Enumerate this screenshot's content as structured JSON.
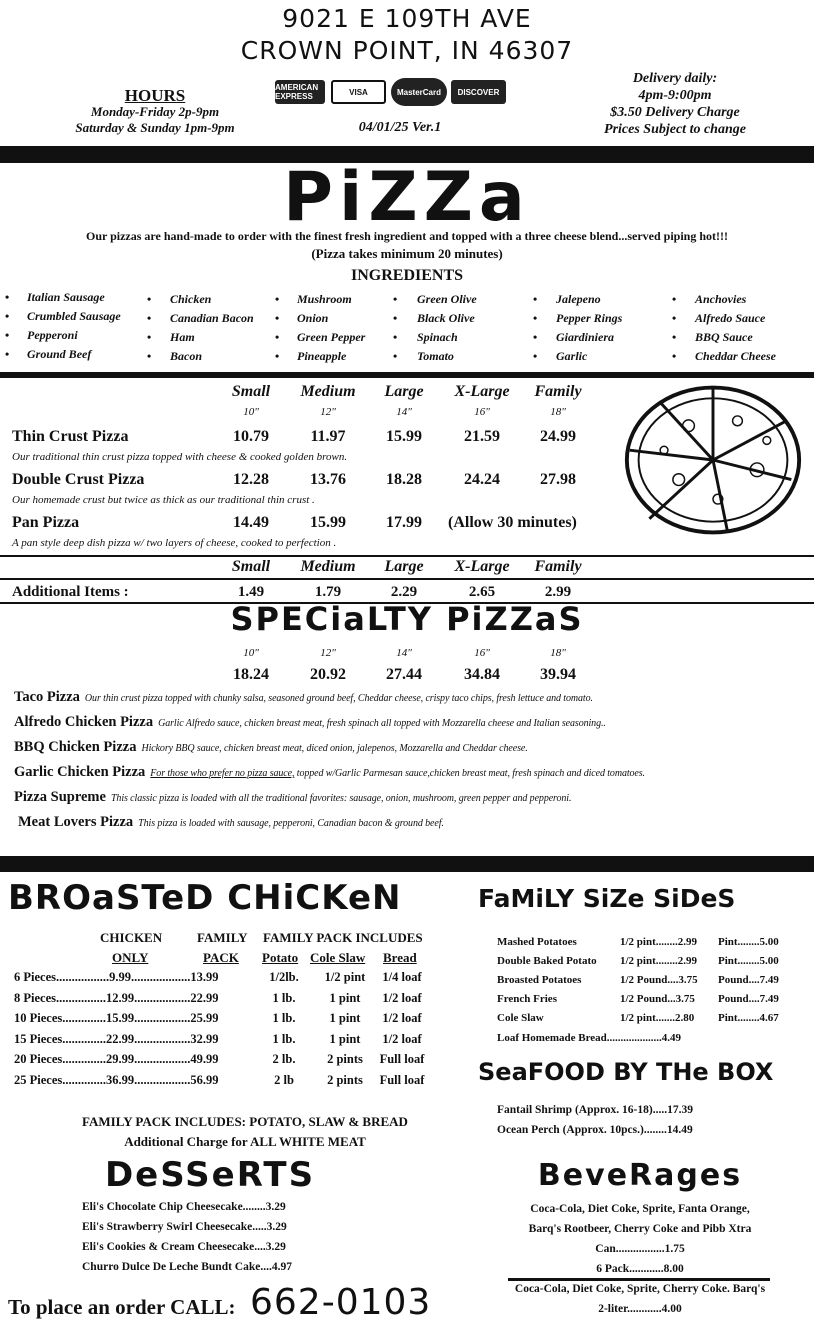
{
  "header": {
    "address1": "9021 E 109TH AVE",
    "address2": "CROWN POINT, IN 46307",
    "hours_title": "HOURS",
    "hours1": "Monday-Friday 2p-9pm",
    "hours2": "Saturday & Sunday 1pm-9pm",
    "cards": [
      "AMERICAN EXPRESS",
      "VISA",
      "MasterCard",
      "DISCOVER"
    ],
    "version": "04/01/25  Ver.1",
    "delivery1": "Delivery daily:",
    "delivery2": "4pm-9:00pm",
    "delivery3": "$3.50 Delivery Charge",
    "delivery4": "Prices Subject to change"
  },
  "pizza": {
    "title": "PiZZa",
    "tagline": "Our pizzas are hand-made to order with the finest fresh ingredient and topped with a three cheese blend...served piping hot!!!",
    "note": "(Pizza takes minimum 20 minutes)",
    "ingredients_title": "INGREDIENTS",
    "ingredients": [
      [
        "Italian Sausage",
        "Crumbled Sausage",
        "Pepperoni",
        "Ground Beef"
      ],
      [
        "Chicken",
        "Canadian Bacon",
        "Ham",
        "Bacon"
      ],
      [
        "Mushroom",
        "Onion",
        "Green Pepper",
        "Pineapple"
      ],
      [
        "Green Olive",
        "Black Olive",
        "Spinach",
        "Tomato"
      ],
      [
        "Jalepeno",
        "Pepper Rings",
        "Giardiniera",
        "Garlic"
      ],
      [
        "Anchovies",
        "Alfredo Sauce",
        "BBQ Sauce",
        "Cheddar Cheese"
      ]
    ],
    "sizes": [
      "Small",
      "Medium",
      "Large",
      "X-Large",
      "Family"
    ],
    "inches": [
      "10\"",
      "12\"",
      "14\"",
      "16\"",
      "18\""
    ],
    "rows": [
      {
        "name": "Thin Crust Pizza",
        "prices": [
          "10.79",
          "11.97",
          "15.99",
          "21.59",
          "24.99"
        ],
        "desc": "Our traditional thin crust  pizza  topped with cheese & cooked golden brown."
      },
      {
        "name": "Double Crust Pizza",
        "prices": [
          "12.28",
          "13.76",
          "18.28",
          "24.24",
          "27.98"
        ],
        "desc": "Our homemade crust but twice as thick as our traditional thin crust ."
      },
      {
        "name": "Pan Pizza",
        "prices": [
          "14.49",
          "15.99",
          "17.99"
        ],
        "extra": "(Allow 30 minutes)",
        "desc": "A pan style deep dish pizza w/ two layers of cheese, cooked to perfection ."
      }
    ],
    "additional_label": "Additional Items :",
    "additional": [
      "1.49",
      "1.79",
      "2.29",
      "2.65",
      "2.99"
    ]
  },
  "specialty": {
    "title": "SPECiaLTY PiZZaS",
    "inches": [
      "10\"",
      "12\"",
      "14\"",
      "16\"",
      "18\""
    ],
    "prices": [
      "18.24",
      "20.92",
      "27.44",
      "34.84",
      "39.94"
    ],
    "items": [
      {
        "name": "Taco Pizza",
        "desc": "Our thin crust  pizza topped with chunky salsa, seasoned ground beef, Cheddar cheese, crispy taco chips, fresh lettuce and tomato."
      },
      {
        "name": "Alfredo Chicken Pizza",
        "desc": "Garlic Alfredo sauce, chicken breast meat, fresh spinach all topped with Mozzarella cheese and Italian seasoning.."
      },
      {
        "name": "BBQ Chicken Pizza",
        "desc": "Hickory BBQ sauce, chicken breast meat, diced onion, jalepenos, Mozzarella and Cheddar cheese."
      },
      {
        "name": "Garlic Chicken Pizza",
        "desc_u": "For those who prefer no pizza sauce,",
        "desc": " topped w/Garlic Parmesan sauce,chicken breast meat, fresh spinach and diced tomatoes."
      },
      {
        "name": "Pizza Supreme",
        "desc": "This classic pizza  is loaded with all the traditional favorites:  sausage, onion, mushroom, green pepper and pepperoni."
      },
      {
        "name": "Meat Lovers Pizza",
        "desc": "This pizza is loaded with sausage, pepperoni, Canadian bacon & ground beef."
      }
    ]
  },
  "chicken": {
    "title": "BROaSTeD CHiCKeN",
    "h1": [
      "CHICKEN",
      "FAMILY",
      "FAMILY PACK INCLUDES"
    ],
    "h2": [
      "ONLY",
      "PACK",
      "Potato",
      "Cole Slaw",
      "Bread"
    ],
    "rows": [
      [
        "6 Pieces.................9.99...................13.99",
        "1/2lb.",
        "1/2 pint",
        "1/4 loaf"
      ],
      [
        "8 Pieces................12.99..................22.99",
        "1 lb.",
        "1 pint",
        "1/2 loaf"
      ],
      [
        "10 Pieces..............15.99..................25.99",
        "1 lb.",
        "1 pint",
        "1/2 loaf"
      ],
      [
        "15 Pieces..............22.99..................32.99",
        "1 lb.",
        "1 pint",
        "1/2 loaf"
      ],
      [
        "20 Pieces..............29.99..................49.99",
        "2 lb.",
        "2 pints",
        "Full loaf"
      ],
      [
        "25 Pieces..............36.99..................56.99",
        "2 lb",
        "2 pints",
        "Full loaf"
      ]
    ],
    "note1": "FAMILY PACK INCLUDES:  POTATO, SLAW & BREAD",
    "note2": "Additional Charge for ALL WHITE MEAT"
  },
  "desserts": {
    "title": "DeSSeRTS",
    "items": [
      "Eli's Chocolate Chip Cheesecake........3.29",
      "Eli's Strawberry Swirl Cheesecake.....3.29",
      "Eli's Cookies & Cream Cheesecake....3.29",
      "Churro Dulce De Leche Bundt Cake....4.97"
    ]
  },
  "order": {
    "label": "To place an order CALL:",
    "phone": "662-0103"
  },
  "sides": {
    "title": "FaMiLY SiZe SiDeS",
    "rows": [
      [
        "Mashed Potatoes",
        "1/2 pint........2.99",
        "Pint........5.00"
      ],
      [
        "Double Baked Potato",
        "1/2 pint........2.99",
        "Pint........5.00"
      ],
      [
        "Broasted Potatoes",
        "1/2 Pound....3.75",
        "Pound....7.49"
      ],
      [
        "French Fries",
        "1/2 Pound...3.75",
        "Pound....7.49"
      ],
      [
        "Cole Slaw",
        "1/2 pint.......2.80",
        "Pint........4.67"
      ]
    ],
    "bread": "Loaf Homemade Bread....................4.49"
  },
  "seafood": {
    "title": "SeaFOOD BY THe BOX",
    "items": [
      "Fantail Shrimp (Approx. 16-18).....17.39",
      "Ocean Perch (Approx. 10pcs.)........14.49"
    ]
  },
  "beverages": {
    "title": "BeveRages",
    "lines": [
      "Coca-Cola, Diet Coke, Sprite, Fanta Orange,",
      "Barq's Rootbeer, Cherry Coke and Pibb Xtra",
      "Can.................1.75",
      "6 Pack............8.00"
    ],
    "lines2": [
      "Coca-Cola, Diet Coke, Sprite, Cherry Coke. Barq's",
      "2-liter............4.00"
    ]
  }
}
